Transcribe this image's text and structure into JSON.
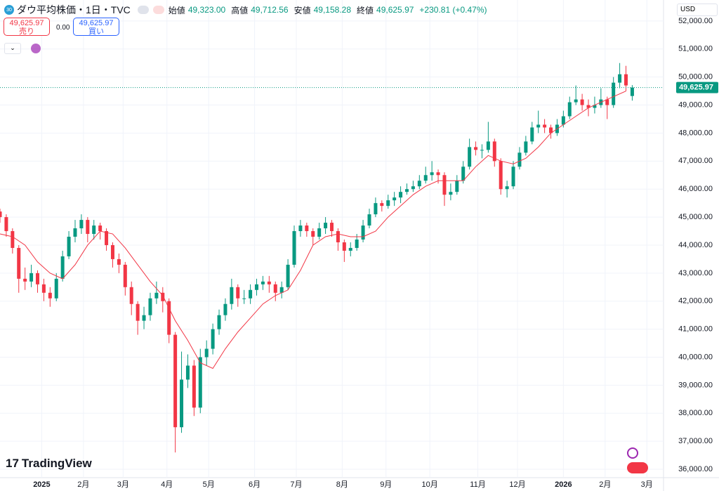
{
  "chart_data": {
    "type": "candlestick",
    "header": {
      "badge": "30",
      "symbol": "ダウ平均株価・1日・TVC",
      "open_label": "始値",
      "open": "49,323.00",
      "high_label": "高値",
      "high": "49,712.56",
      "low_label": "安値",
      "low": "49,158.28",
      "close_label": "終値",
      "close": "49,625.97",
      "change": "+230.81 (+0.47%)"
    },
    "sell": {
      "price": "49,625.97",
      "label": "売り"
    },
    "spread": "0.00",
    "buy": {
      "price": "49,625.97",
      "label": "買い"
    },
    "currency": "USD",
    "logo": "TradingView",
    "last_price": 49625.97,
    "last_price_label": "49,625.97",
    "up_color": "#089981",
    "down_color": "#f23645",
    "ma_color": "#f23645",
    "grid": true,
    "xlim": [
      -20,
      298
    ],
    "ylim": [
      35700,
      52750
    ],
    "xticks": [
      {
        "value": 0,
        "label": "2025"
      },
      {
        "value": 20,
        "label": "2月"
      },
      {
        "value": 39,
        "label": "3月"
      },
      {
        "value": 60,
        "label": "4月"
      },
      {
        "value": 80,
        "label": "5月"
      },
      {
        "value": 102,
        "label": "6月"
      },
      {
        "value": 122,
        "label": "7月"
      },
      {
        "value": 144,
        "label": "8月"
      },
      {
        "value": 165,
        "label": "9月"
      },
      {
        "value": 186,
        "label": "10月"
      },
      {
        "value": 209,
        "label": "11月"
      },
      {
        "value": 228,
        "label": "12月"
      },
      {
        "value": 250,
        "label": "2026"
      },
      {
        "value": 270,
        "label": "2月"
      },
      {
        "value": 290,
        "label": "3月"
      }
    ],
    "yticks": [
      {
        "value": 36000,
        "label": "36,000.00"
      },
      {
        "value": 37000,
        "label": "37,000.00"
      },
      {
        "value": 38000,
        "label": "38,000.00"
      },
      {
        "value": 39000,
        "label": "39,000.00"
      },
      {
        "value": 40000,
        "label": "40,000.00"
      },
      {
        "value": 41000,
        "label": "41,000.00"
      },
      {
        "value": 42000,
        "label": "42,000.00"
      },
      {
        "value": 43000,
        "label": "43,000.00"
      },
      {
        "value": 44000,
        "label": "44,000.00"
      },
      {
        "value": 45000,
        "label": "45,000.00"
      },
      {
        "value": 46000,
        "label": "46,000.00"
      },
      {
        "value": 47000,
        "label": "47,000.00"
      },
      {
        "value": 48000,
        "label": "48,000.00"
      },
      {
        "value": 49000,
        "label": "49,000.00"
      },
      {
        "value": 50000,
        "label": "50,000.00"
      },
      {
        "value": 51000,
        "label": "51,000.00"
      },
      {
        "value": 52000,
        "label": "52,000.00"
      }
    ],
    "candles": {
      "x": [
        -20,
        -17,
        -14,
        -11,
        -8,
        -5,
        -2,
        1,
        4,
        7,
        10,
        13,
        16,
        19,
        22,
        25,
        28,
        31,
        34,
        37,
        40,
        43,
        46,
        49,
        52,
        55,
        58,
        61,
        64,
        67,
        70,
        73,
        76,
        79,
        82,
        85,
        88,
        91,
        94,
        97,
        100,
        103,
        106,
        109,
        112,
        115,
        118,
        121,
        124,
        127,
        130,
        133,
        136,
        139,
        142,
        145,
        148,
        151,
        154,
        157,
        160,
        163,
        166,
        169,
        172,
        175,
        178,
        181,
        184,
        187,
        190,
        193,
        196,
        199,
        202,
        205,
        208,
        211,
        214,
        217,
        220,
        223,
        226,
        229,
        232,
        235,
        238,
        241,
        244,
        247,
        250,
        253,
        256,
        259,
        262,
        265,
        268,
        271,
        274,
        277,
        280,
        283
      ],
      "open": [
        45200,
        45000,
        44500,
        43900,
        42800,
        42700,
        43000,
        42600,
        42300,
        42100,
        42800,
        43600,
        44300,
        44600,
        44900,
        44400,
        44700,
        44500,
        44000,
        43500,
        43300,
        42500,
        41900,
        41300,
        41500,
        42100,
        42300,
        42000,
        40800,
        37500,
        39200,
        39700,
        38200,
        40000,
        40300,
        41000,
        41500,
        41900,
        42500,
        42100,
        42100,
        42400,
        42600,
        42700,
        42600,
        42300,
        42500,
        43300,
        44500,
        44700,
        44500,
        44300,
        44600,
        44800,
        44500,
        44100,
        43800,
        43900,
        44200,
        44700,
        45100,
        45500,
        45400,
        45600,
        45700,
        45900,
        46000,
        46100,
        46300,
        46500,
        46600,
        46500,
        45800,
        45900,
        46300,
        46800,
        47500,
        47400,
        47400,
        47700,
        47000,
        46000,
        46100,
        46800,
        47300,
        47700,
        48200,
        48300,
        48200,
        48000,
        48300,
        48600,
        49100,
        49200,
        49000,
        48900,
        49000,
        49200,
        49000,
        49800,
        50100,
        49323
      ],
      "high": [
        45300,
        45100,
        44600,
        44000,
        43200,
        43300,
        43100,
        42800,
        42500,
        43000,
        43800,
        44500,
        44900,
        45100,
        45000,
        44900,
        44800,
        44600,
        44100,
        43700,
        43400,
        42700,
        42000,
        41800,
        42300,
        42700,
        42500,
        42100,
        40900,
        40200,
        40100,
        39900,
        40300,
        40600,
        41200,
        41700,
        42100,
        42800,
        42600,
        42400,
        42600,
        42800,
        42900,
        42900,
        42700,
        42700,
        43500,
        44700,
        44900,
        44800,
        44600,
        44800,
        45000,
        44900,
        44600,
        44200,
        44100,
        44400,
        44900,
        45300,
        45700,
        45600,
        45800,
        45900,
        46100,
        46200,
        46300,
        46500,
        46800,
        47000,
        46700,
        46600,
        46200,
        46500,
        47000,
        47800,
        47700,
        47600,
        48400,
        47800,
        47100,
        46300,
        47000,
        47500,
        47900,
        48400,
        48800,
        48500,
        48300,
        48500,
        48800,
        49300,
        49700,
        49400,
        49200,
        49300,
        49600,
        49300,
        50000,
        50500,
        50400,
        49712.56
      ],
      "low": [
        44800,
        44300,
        43700,
        42300,
        42400,
        42500,
        42300,
        42000,
        41800,
        42000,
        42700,
        43500,
        44100,
        44400,
        44100,
        44200,
        44200,
        43800,
        43200,
        43000,
        42200,
        41500,
        40800,
        41000,
        41300,
        41900,
        41600,
        40500,
        36600,
        37300,
        38900,
        37900,
        38000,
        39700,
        40100,
        40800,
        41300,
        41700,
        41800,
        41900,
        41900,
        42200,
        42400,
        42300,
        42000,
        42100,
        42400,
        43200,
        44300,
        44300,
        44000,
        44200,
        44400,
        44300,
        43800,
        43400,
        43600,
        43800,
        44100,
        44600,
        45000,
        45200,
        45300,
        45400,
        45500,
        45800,
        45900,
        46000,
        46200,
        46300,
        46200,
        45400,
        45600,
        45800,
        46200,
        46700,
        47200,
        47100,
        47300,
        46800,
        45800,
        45700,
        46000,
        46700,
        47200,
        47600,
        48000,
        48000,
        47800,
        47900,
        48200,
        48500,
        49000,
        48800,
        48600,
        48700,
        48900,
        48500,
        48900,
        49600,
        49500,
        49158.28
      ],
      "close": [
        45000,
        44500,
        43900,
        42800,
        42700,
        43000,
        42600,
        42300,
        42100,
        42800,
        43600,
        44300,
        44600,
        44900,
        44400,
        44700,
        44500,
        44000,
        43500,
        43300,
        42500,
        41900,
        41300,
        41500,
        42100,
        42300,
        42000,
        40800,
        37500,
        39200,
        39700,
        38200,
        40000,
        40300,
        41000,
        41500,
        41900,
        42500,
        42100,
        42100,
        42400,
        42600,
        42700,
        42600,
        42300,
        42500,
        43300,
        44500,
        44700,
        44500,
        44300,
        44600,
        44800,
        44500,
        44100,
        43800,
        43900,
        44200,
        44700,
        45100,
        45500,
        45400,
        45600,
        45700,
        45900,
        46000,
        46100,
        46300,
        46500,
        46600,
        46500,
        45800,
        45900,
        46300,
        46800,
        47500,
        47400,
        47400,
        47700,
        47000,
        46000,
        46100,
        46800,
        47300,
        47700,
        48200,
        48300,
        48200,
        48000,
        48300,
        48600,
        49100,
        49200,
        49000,
        48900,
        49000,
        49200,
        49000,
        49800,
        50100,
        49700,
        49625.97
      ]
    },
    "ma": {
      "x": [
        -20,
        -14,
        -8,
        -2,
        4,
        10,
        16,
        22,
        28,
        34,
        40,
        46,
        52,
        58,
        64,
        70,
        76,
        82,
        88,
        94,
        100,
        106,
        112,
        118,
        124,
        130,
        136,
        142,
        148,
        154,
        160,
        166,
        172,
        178,
        184,
        190,
        196,
        202,
        208,
        214,
        220,
        226,
        232,
        238,
        244,
        250,
        256,
        262,
        268,
        274,
        280
      ],
      "values": [
        44400,
        44300,
        44000,
        43400,
        43000,
        42800,
        43300,
        44000,
        44500,
        44400,
        43900,
        43300,
        42700,
        42200,
        41300,
        40600,
        39800,
        39600,
        40300,
        40900,
        41400,
        41900,
        42200,
        42400,
        43100,
        44000,
        44300,
        44400,
        44300,
        44300,
        44500,
        45000,
        45400,
        45800,
        46100,
        46300,
        46300,
        46300,
        46800,
        47200,
        47000,
        46900,
        47100,
        47500,
        48000,
        48300,
        48600,
        48900,
        49100,
        49300,
        49500
      ]
    }
  }
}
